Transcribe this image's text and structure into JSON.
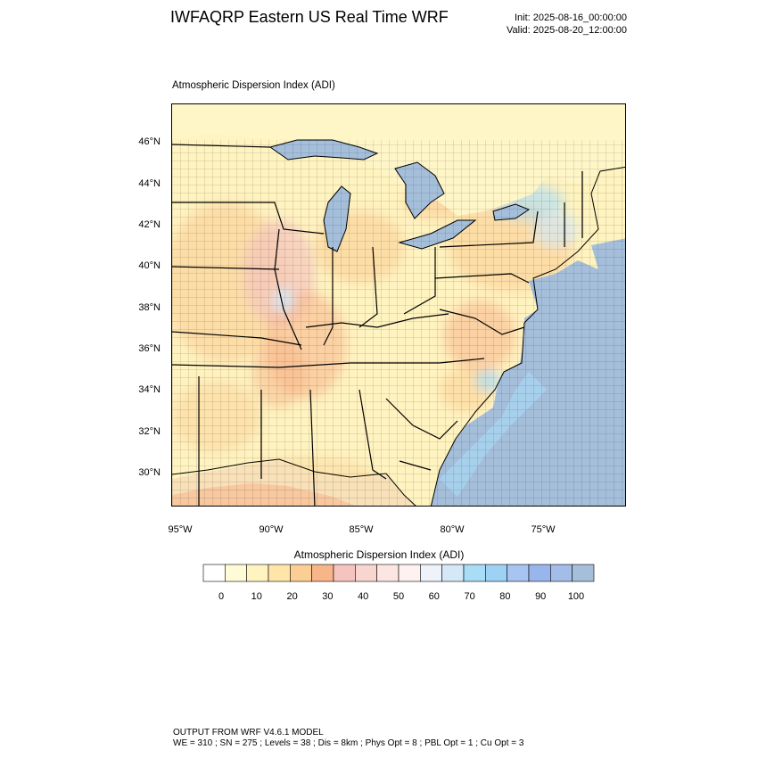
{
  "header": {
    "title": "IWFAQRP Eastern US Real Time WRF",
    "init": "Init: 2025-08-16_00:00:00",
    "valid": "Valid: 2025-08-20_12:00:00"
  },
  "field_title": "Atmospheric Dispersion Index   (ADI)",
  "axes": {
    "y_ticks": [
      "46°N",
      "44°N",
      "42°N",
      "40°N",
      "38°N",
      "36°N",
      "34°N",
      "32°N",
      "30°N"
    ],
    "x_ticks": [
      "95°W",
      "90°W",
      "85°W",
      "80°W",
      "75°W"
    ]
  },
  "legend": {
    "title": "Atmospheric Dispersion Index  (ADI)",
    "labels": [
      "0",
      "10",
      "20",
      "30",
      "40",
      "50",
      "60",
      "70",
      "80",
      "90",
      "100"
    ],
    "colors": [
      "#ffffff",
      "#fffbd6",
      "#fff3c0",
      "#ffe6a8",
      "#fbcf94",
      "#f7b58a",
      "#f5c4be",
      "#f9d5d0",
      "#fde6e2",
      "#fdf2ef",
      "#eef2fb",
      "#d4e8f7",
      "#a9dcf7",
      "#9ed2f4",
      "#a8c4f0",
      "#99b6ec",
      "#a3bde8",
      "#a5bfdb"
    ]
  },
  "footer": {
    "line1": "OUTPUT FROM WRF V4.6.1 MODEL",
    "line2": "WE = 310 ; SN = 275 ; Levels = 38 ; Dis = 8km ; Phys Opt = 8 ; PBL Opt = 1 ; Cu Opt = 3"
  }
}
